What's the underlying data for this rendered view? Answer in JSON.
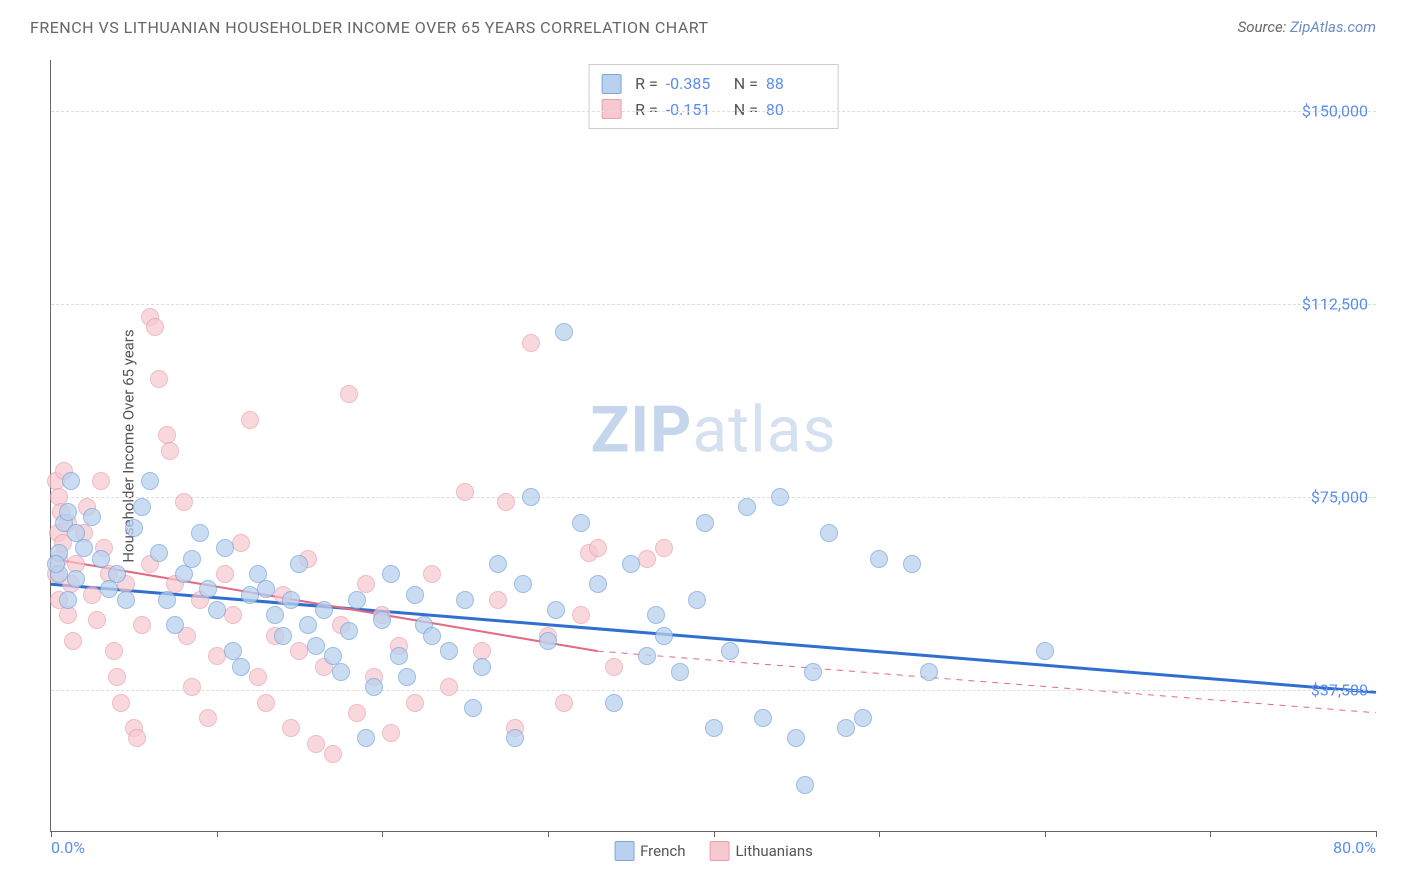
{
  "header": {
    "title": "FRENCH VS LITHUANIAN HOUSEHOLDER INCOME OVER 65 YEARS CORRELATION CHART",
    "title_fontsize": 16,
    "title_color": "#666666",
    "source_label": "Source: ",
    "source_link": "ZipAtlas.com",
    "source_fontsize": 15,
    "source_color": "#666666",
    "link_color": "#6c8cc4"
  },
  "watermark": {
    "text_a": "ZIP",
    "text_b": "atlas"
  },
  "chart": {
    "type": "scatter",
    "background_color": "#ffffff",
    "grid_color": "#dddddd",
    "axis_color": "#666666",
    "ylabel": "Householder Income Over 65 years",
    "x_min": 0.0,
    "x_max": 80.0,
    "y_min": 10000,
    "y_max": 160000,
    "y_gridlines": [
      37500,
      75000,
      112500,
      150000
    ],
    "y_tick_labels": [
      "$37,500",
      "$75,000",
      "$112,500",
      "$150,000"
    ],
    "y_tick_fontsize": 16,
    "y_tick_color": "#5b8def",
    "x_ticks": [
      0,
      10,
      20,
      30,
      40,
      50,
      60,
      70,
      80
    ],
    "x_label_min": "0.0%",
    "x_label_max": "80.0%",
    "series": [
      {
        "name": "French",
        "label": "French",
        "fill": "#b9d1ee",
        "stroke": "#7ba7db",
        "line_color": "#2f6fd0",
        "line_width": 3,
        "marker_radius": 9,
        "marker_opacity": 0.75,
        "R": "-0.385",
        "N": "88",
        "trend": {
          "x1": 0.0,
          "y1": 58000,
          "x2": 80.0,
          "y2": 37000
        },
        "points": [
          [
            0.5,
            60000
          ],
          [
            0.8,
            70000
          ],
          [
            1.0,
            72000
          ],
          [
            0.5,
            64000
          ],
          [
            1.2,
            78000
          ],
          [
            1.5,
            68000
          ],
          [
            0.3,
            62000
          ],
          [
            1.0,
            55000
          ],
          [
            1.5,
            59000
          ],
          [
            2.0,
            65000
          ],
          [
            2.5,
            71000
          ],
          [
            3.0,
            63000
          ],
          [
            3.5,
            57000
          ],
          [
            4.0,
            60000
          ],
          [
            4.5,
            55000
          ],
          [
            5.0,
            69000
          ],
          [
            5.5,
            73000
          ],
          [
            6.0,
            78000
          ],
          [
            6.5,
            64000
          ],
          [
            7.0,
            55000
          ],
          [
            7.5,
            50000
          ],
          [
            8.0,
            60000
          ],
          [
            8.5,
            63000
          ],
          [
            9.0,
            68000
          ],
          [
            9.5,
            57000
          ],
          [
            10.0,
            53000
          ],
          [
            10.5,
            65000
          ],
          [
            11.0,
            45000
          ],
          [
            11.5,
            42000
          ],
          [
            12.0,
            56000
          ],
          [
            12.5,
            60000
          ],
          [
            13.0,
            57000
          ],
          [
            13.5,
            52000
          ],
          [
            14.0,
            48000
          ],
          [
            14.5,
            55000
          ],
          [
            15.0,
            62000
          ],
          [
            15.5,
            50000
          ],
          [
            16.0,
            46000
          ],
          [
            16.5,
            53000
          ],
          [
            17.0,
            44000
          ],
          [
            17.5,
            41000
          ],
          [
            18.0,
            49000
          ],
          [
            18.5,
            55000
          ],
          [
            19.0,
            28000
          ],
          [
            19.5,
            38000
          ],
          [
            20.0,
            51000
          ],
          [
            20.5,
            60000
          ],
          [
            21.0,
            44000
          ],
          [
            21.5,
            40000
          ],
          [
            22.0,
            56000
          ],
          [
            22.5,
            50000
          ],
          [
            23.0,
            48000
          ],
          [
            24.0,
            45000
          ],
          [
            25.0,
            55000
          ],
          [
            25.5,
            34000
          ],
          [
            26.0,
            42000
          ],
          [
            27.0,
            62000
          ],
          [
            28.0,
            28000
          ],
          [
            28.5,
            58000
          ],
          [
            29.0,
            75000
          ],
          [
            30.0,
            47000
          ],
          [
            30.5,
            53000
          ],
          [
            31.0,
            107000
          ],
          [
            32.0,
            70000
          ],
          [
            33.0,
            58000
          ],
          [
            34.0,
            35000
          ],
          [
            35.0,
            62000
          ],
          [
            36.0,
            44000
          ],
          [
            36.5,
            52000
          ],
          [
            37.0,
            48000
          ],
          [
            38.0,
            41000
          ],
          [
            39.0,
            55000
          ],
          [
            39.5,
            70000
          ],
          [
            40.0,
            30000
          ],
          [
            41.0,
            45000
          ],
          [
            42.0,
            73000
          ],
          [
            43.0,
            32000
          ],
          [
            44.0,
            75000
          ],
          [
            45.0,
            28000
          ],
          [
            45.5,
            19000
          ],
          [
            46.0,
            41000
          ],
          [
            47.0,
            68000
          ],
          [
            48.0,
            30000
          ],
          [
            49.0,
            32000
          ],
          [
            50.0,
            63000
          ],
          [
            52.0,
            62000
          ],
          [
            53.0,
            41000
          ],
          [
            60.0,
            45000
          ]
        ]
      },
      {
        "name": "Lithuanians",
        "label": "Lithuanians",
        "fill": "#f7c8d0",
        "stroke": "#e8a0ad",
        "line_color": "#e26a82",
        "line_width": 2,
        "line_dash_ext": true,
        "marker_radius": 9,
        "marker_opacity": 0.7,
        "R": "-0.151",
        "N": "80",
        "trend": {
          "x1": 0.0,
          "y1": 63000,
          "x2": 33.0,
          "y2": 45000
        },
        "trend_ext": {
          "x1": 33.0,
          "y1": 45000,
          "x2": 80.0,
          "y2": 33000
        },
        "points": [
          [
            0.3,
            78000
          ],
          [
            0.5,
            75000
          ],
          [
            0.6,
            72000
          ],
          [
            0.4,
            68000
          ],
          [
            0.5,
            63000
          ],
          [
            0.8,
            80000
          ],
          [
            0.3,
            60000
          ],
          [
            0.5,
            55000
          ],
          [
            0.7,
            66000
          ],
          [
            1.0,
            70000
          ],
          [
            1.2,
            58000
          ],
          [
            1.5,
            62000
          ],
          [
            1.0,
            52000
          ],
          [
            1.3,
            47000
          ],
          [
            2.0,
            68000
          ],
          [
            2.2,
            73000
          ],
          [
            2.5,
            56000
          ],
          [
            2.8,
            51000
          ],
          [
            3.0,
            78000
          ],
          [
            3.2,
            65000
          ],
          [
            3.5,
            60000
          ],
          [
            3.8,
            45000
          ],
          [
            4.0,
            40000
          ],
          [
            4.2,
            35000
          ],
          [
            4.5,
            58000
          ],
          [
            5.0,
            30000
          ],
          [
            5.2,
            28000
          ],
          [
            5.5,
            50000
          ],
          [
            6.0,
            62000
          ],
          [
            6.0,
            110000
          ],
          [
            6.3,
            108000
          ],
          [
            6.5,
            98000
          ],
          [
            7.0,
            87000
          ],
          [
            7.2,
            84000
          ],
          [
            7.5,
            58000
          ],
          [
            8.0,
            74000
          ],
          [
            8.2,
            48000
          ],
          [
            8.5,
            38000
          ],
          [
            9.0,
            55000
          ],
          [
            9.5,
            32000
          ],
          [
            10.0,
            44000
          ],
          [
            10.5,
            60000
          ],
          [
            11.0,
            52000
          ],
          [
            11.5,
            66000
          ],
          [
            12.0,
            90000
          ],
          [
            12.5,
            40000
          ],
          [
            13.0,
            35000
          ],
          [
            13.5,
            48000
          ],
          [
            14.0,
            56000
          ],
          [
            14.5,
            30000
          ],
          [
            15.0,
            45000
          ],
          [
            15.5,
            63000
          ],
          [
            16.0,
            27000
          ],
          [
            16.5,
            42000
          ],
          [
            17.0,
            25000
          ],
          [
            17.5,
            50000
          ],
          [
            18.0,
            95000
          ],
          [
            18.5,
            33000
          ],
          [
            19.0,
            58000
          ],
          [
            19.5,
            40000
          ],
          [
            20.0,
            52000
          ],
          [
            20.5,
            29000
          ],
          [
            21.0,
            46000
          ],
          [
            22.0,
            35000
          ],
          [
            23.0,
            60000
          ],
          [
            24.0,
            38000
          ],
          [
            25.0,
            76000
          ],
          [
            26.0,
            45000
          ],
          [
            27.0,
            55000
          ],
          [
            27.5,
            74000
          ],
          [
            28.0,
            30000
          ],
          [
            29.0,
            105000
          ],
          [
            30.0,
            48000
          ],
          [
            31.0,
            35000
          ],
          [
            32.0,
            52000
          ],
          [
            32.5,
            64000
          ],
          [
            33.0,
            65000
          ],
          [
            34.0,
            42000
          ],
          [
            36.0,
            63000
          ],
          [
            37.0,
            65000
          ]
        ]
      }
    ]
  },
  "legend_bottom": {
    "items": [
      {
        "key": "French",
        "fill": "#b9d1ee",
        "stroke": "#7ba7db"
      },
      {
        "key": "Lithuanians",
        "fill": "#f7c8d0",
        "stroke": "#e8a0ad"
      }
    ],
    "fontsize": 15,
    "text_color": "#555555"
  },
  "legend_top": {
    "border_color": "#cccccc",
    "label_color": "#555555",
    "value_color": "#5b8def",
    "R_label": "R =",
    "N_label": "N =",
    "fontsize": 16
  }
}
